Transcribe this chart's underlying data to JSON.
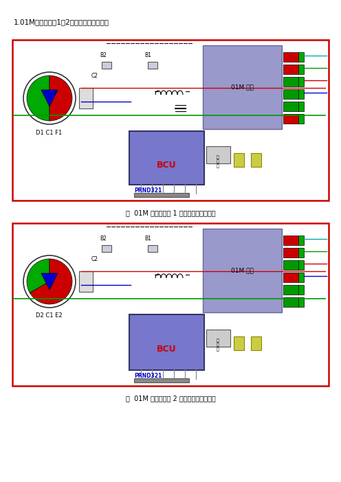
{
  "title": "1.01M自动变速器1、2挡电磁阀工作状况图",
  "caption1": "图  01M 自动变速器 1 挡电磁阀工作状况图",
  "caption2": "图  01M 自动变速器 2 挡电磁阀工作状况图",
  "label1": "D1 C1 F1",
  "label2": "D2 C1 E2",
  "bg_color": "#ffffff",
  "box1_color": "#cc0000",
  "box2_color": "#cc0000",
  "bcu_color": "#6666cc",
  "valve_body_color": "#7777cc",
  "valve_label": "01M 阀体",
  "bcu_label": "BCU",
  "p_label": "PRND321"
}
